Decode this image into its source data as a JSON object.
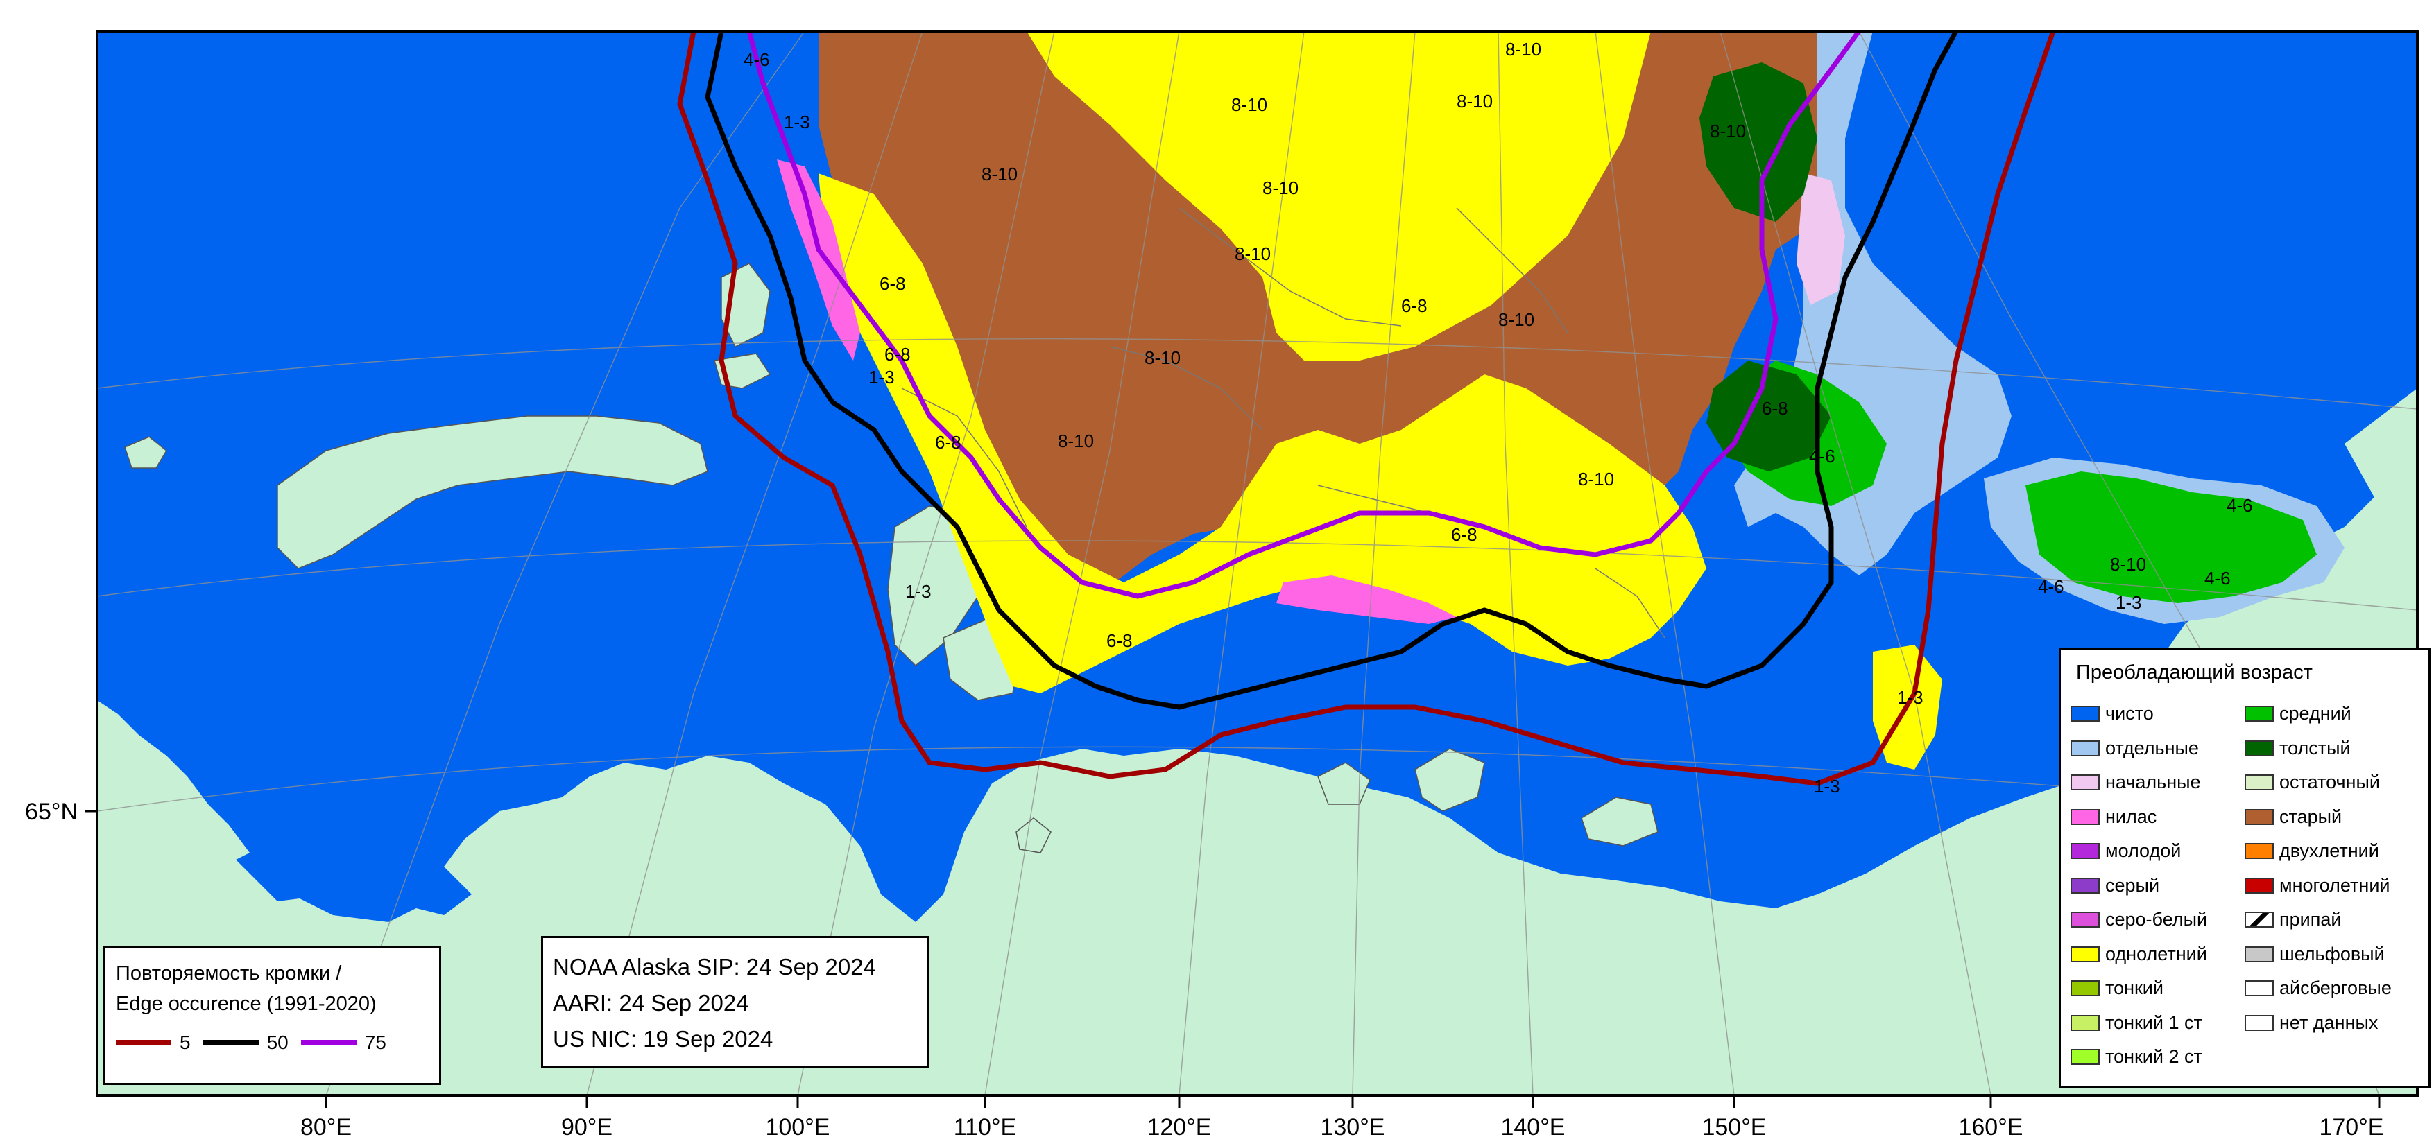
{
  "map": {
    "colors": {
      "land": "#c8f0d4",
      "water": "#0064f0",
      "old": "#b06030",
      "first_year": "#ffff00",
      "medium": "#00c000",
      "thick": "#006400",
      "scattered": "#a0c8f0",
      "new": "#f0c8f0",
      "nilas": "#ff66e6",
      "edge_5": "#a00000",
      "edge_50": "#000000",
      "edge_75": "#a000e0",
      "grid": "#909090"
    },
    "longitude_ticks": [
      "80°E",
      "90°E",
      "100°E",
      "110°E",
      "120°E",
      "130°E",
      "140°E",
      "150°E",
      "160°E",
      "170°E"
    ],
    "latitude_tick": "65°N",
    "area_labels": {
      "a1": "8-10",
      "a2": "8-10",
      "a3": "8-10",
      "a4": "8-10",
      "a5": "8-10",
      "a6": "8-10",
      "a7": "8-10",
      "a8": "8-10",
      "a9": "8-10",
      "a10": "8-10",
      "a11": "8-10",
      "a12": "6-8",
      "a13": "6-8",
      "a14": "6-8",
      "a15": "6-8",
      "a16": "6-8",
      "a17": "6-8",
      "a18": "1-3",
      "a19": "1-3",
      "a20": "1-3",
      "a21": "1-3",
      "a22": "1-3",
      "a23": "1-3",
      "a24": "4-6",
      "a25": "4-6",
      "a26": "4-6",
      "a27": "4-6",
      "a28": "4-6",
      "a29": "8-10",
      "a30": "6-8"
    }
  },
  "legend": {
    "title": "Преобладающий возраст",
    "left_items": [
      {
        "label": "чисто",
        "color": "#0064f0"
      },
      {
        "label": "отдельные",
        "color": "#a0c8f0"
      },
      {
        "label": "начальные",
        "color": "#f0c8f0"
      },
      {
        "label": "нилас",
        "color": "#ff66e6"
      },
      {
        "label": "молодой",
        "color": "#b428dc"
      },
      {
        "label": "серый",
        "color": "#8c3cc8"
      },
      {
        "label": "серо-белый",
        "color": "#dc50dc"
      },
      {
        "label": "однолетний",
        "color": "#ffff00"
      },
      {
        "label": "тонкий",
        "color": "#96c800"
      },
      {
        "label": "тонкий 1 ст",
        "color": "#c8f064"
      },
      {
        "label": "тонкий 2 ст",
        "color": "#a0ff28"
      }
    ],
    "right_items": [
      {
        "label": "средний",
        "color": "#00c000"
      },
      {
        "label": "толстый",
        "color": "#006400"
      },
      {
        "label": "остаточный",
        "color": "#dcf0c8"
      },
      {
        "label": "старый",
        "color": "#b06030"
      },
      {
        "label": "двухлетний",
        "color": "#ff8000"
      },
      {
        "label": "многолетний",
        "color": "#c80000"
      },
      {
        "label": "припай",
        "color": "#ffffff"
      },
      {
        "label": "шельфовый",
        "color": "#c8c8c8"
      },
      {
        "label": "айсберговые",
        "color": "#ffffff"
      },
      {
        "label": "нет данных",
        "color": "#ffffff"
      }
    ]
  },
  "edge_occurrence": {
    "line1": "Повторяемость кромки /",
    "line2": "Edge occurence (1991-2020)",
    "entries": [
      {
        "value": "5",
        "color": "#a00000"
      },
      {
        "value": "50",
        "color": "#000000"
      },
      {
        "value": "75",
        "color": "#a000e0"
      }
    ]
  },
  "sources": {
    "line1": "NOAA Alaska SIP: 24 Sep 2024",
    "line2": "AARI: 24 Sep 2024",
    "line3": "US NIC: 19 Sep 2024"
  }
}
